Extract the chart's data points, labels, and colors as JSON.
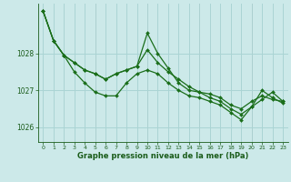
{
  "bg_color": "#cce9e9",
  "grid_color": "#aad4d4",
  "red_grid_color": "#cc6666",
  "line_color": "#1a6e1a",
  "marker_color": "#1a6e1a",
  "text_color": "#1a5c1a",
  "xlabel": "Graphe pression niveau de la mer (hPa)",
  "xlim": [
    -0.5,
    23.5
  ],
  "ylim": [
    1025.6,
    1029.35
  ],
  "yticks": [
    1026,
    1027,
    1028
  ],
  "xticks": [
    0,
    1,
    2,
    3,
    4,
    5,
    6,
    7,
    8,
    9,
    10,
    11,
    12,
    13,
    14,
    15,
    16,
    17,
    18,
    19,
    20,
    21,
    22,
    23
  ],
  "red_vlines": [
    5,
    10,
    15,
    20
  ],
  "series": [
    [
      1029.15,
      1028.35,
      1027.95,
      1027.75,
      1027.55,
      1027.45,
      1027.3,
      1027.45,
      1027.55,
      1027.65,
      1028.1,
      1027.75,
      1027.5,
      1027.3,
      1027.1,
      1026.95,
      1026.9,
      1026.8,
      1026.6,
      1026.5,
      1026.7,
      1026.85,
      1026.75,
      1026.7
    ],
    [
      1029.15,
      1028.35,
      1027.95,
      1027.75,
      1027.55,
      1027.45,
      1027.3,
      1027.45,
      1027.55,
      1027.65,
      1028.55,
      1028.0,
      1027.6,
      1027.2,
      1027.0,
      1026.95,
      1026.8,
      1026.7,
      1026.5,
      1026.35,
      1026.55,
      1027.0,
      1026.8,
      1026.65
    ],
    [
      1029.15,
      1028.35,
      1027.95,
      1027.5,
      1027.2,
      1026.95,
      1026.85,
      1026.85,
      1027.2,
      1027.45,
      1027.55,
      1027.45,
      1027.2,
      1027.0,
      1026.85,
      1026.8,
      1026.7,
      1026.6,
      1026.4,
      1026.2,
      1026.55,
      1026.75,
      1026.95,
      1026.7
    ]
  ]
}
